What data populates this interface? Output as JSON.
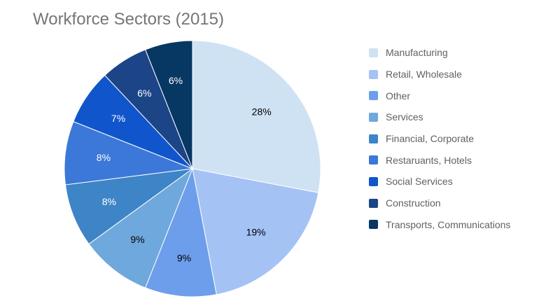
{
  "chart_data": {
    "type": "pie",
    "title": "Workforce Sectors (2015)",
    "categories": [
      "Manufacturing",
      "Retail, Wholesale",
      "Other",
      "Services",
      "Financial, Corporate",
      "Restaruants, Hotels",
      "Social Services",
      "Construction",
      "Transports, Communications"
    ],
    "values": [
      28,
      19,
      9,
      9,
      8,
      8,
      7,
      6,
      6
    ],
    "labels": [
      "28%",
      "19%",
      "9%",
      "9%",
      "8%",
      "8%",
      "7%",
      "6%",
      "6%"
    ],
    "colors": [
      "#cfe2f3",
      "#a4c2f4",
      "#6d9eeb",
      "#6fa8dc",
      "#3d85c6",
      "#3c78d8",
      "#1155cc",
      "#1c4587",
      "#073763"
    ],
    "label_colors": [
      "#000000",
      "#000000",
      "#000000",
      "#000000",
      "#ffffff",
      "#ffffff",
      "#ffffff",
      "#ffffff",
      "#ffffff"
    ],
    "legend_position": "right",
    "start_angle": "top, clockwise"
  }
}
